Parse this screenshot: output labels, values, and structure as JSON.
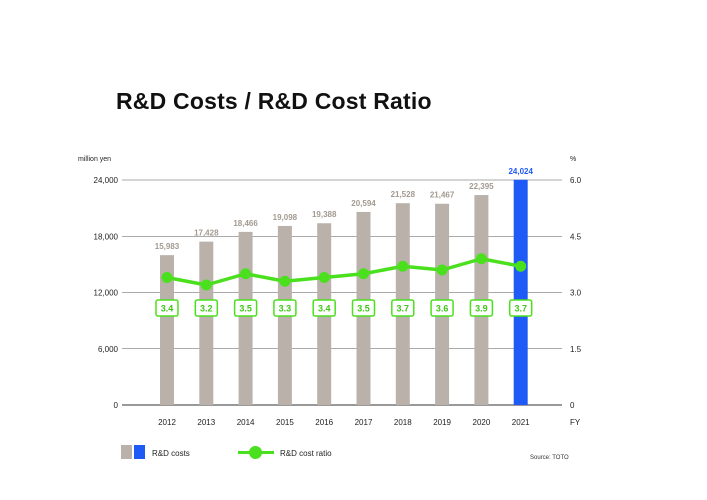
{
  "title": "R&D Costs / R&D Cost Ratio",
  "chart_data": {
    "type": "bar",
    "title": "R&D Costs / R&D Cost Ratio",
    "categories": [
      "2012",
      "2013",
      "2014",
      "2015",
      "2016",
      "2017",
      "2018",
      "2019",
      "2020",
      "2021"
    ],
    "x_axis_label": "FY",
    "left_axis": {
      "unit_label": "million yen",
      "range": [
        0,
        24000
      ],
      "ticks": [
        "0",
        "6,000",
        "12,000",
        "18,000",
        "24,000"
      ],
      "tick_values": [
        0,
        6000,
        12000,
        18000,
        24000
      ]
    },
    "right_axis": {
      "unit_label": "%",
      "range": [
        0,
        6.0
      ],
      "ticks": [
        "0",
        "1.5",
        "3.0",
        "4.5",
        "6.0"
      ],
      "tick_values": [
        0,
        1.5,
        3.0,
        4.5,
        6.0
      ]
    },
    "series": [
      {
        "name": "R&D costs",
        "kind": "bar",
        "axis": "left",
        "values": [
          15983,
          17428,
          18466,
          19098,
          19388,
          20594,
          21528,
          21467,
          22395,
          24024
        ],
        "labels": [
          "15,983",
          "17,428",
          "18,466",
          "19,098",
          "19,388",
          "20,594",
          "21,528",
          "21,467",
          "22,395",
          "24,024"
        ],
        "color": "#bab2aa",
        "highlight_color": "#1e5af5",
        "highlight_index": 9,
        "label_color": "#a39a90"
      },
      {
        "name": "R&D cost ratio",
        "kind": "line",
        "axis": "right",
        "values": [
          3.4,
          3.2,
          3.5,
          3.3,
          3.4,
          3.5,
          3.7,
          3.6,
          3.9,
          3.7
        ],
        "labels": [
          "3.4",
          "3.2",
          "3.5",
          "3.3",
          "3.4",
          "3.5",
          "3.7",
          "3.6",
          "3.9",
          "3.7"
        ],
        "color": "#4be01e"
      }
    ],
    "grid": true,
    "legend_position": "bottom-left"
  },
  "legend": {
    "bar_label": "R&D costs",
    "line_label": "R&D cost ratio"
  },
  "source": "Source: TOTO"
}
